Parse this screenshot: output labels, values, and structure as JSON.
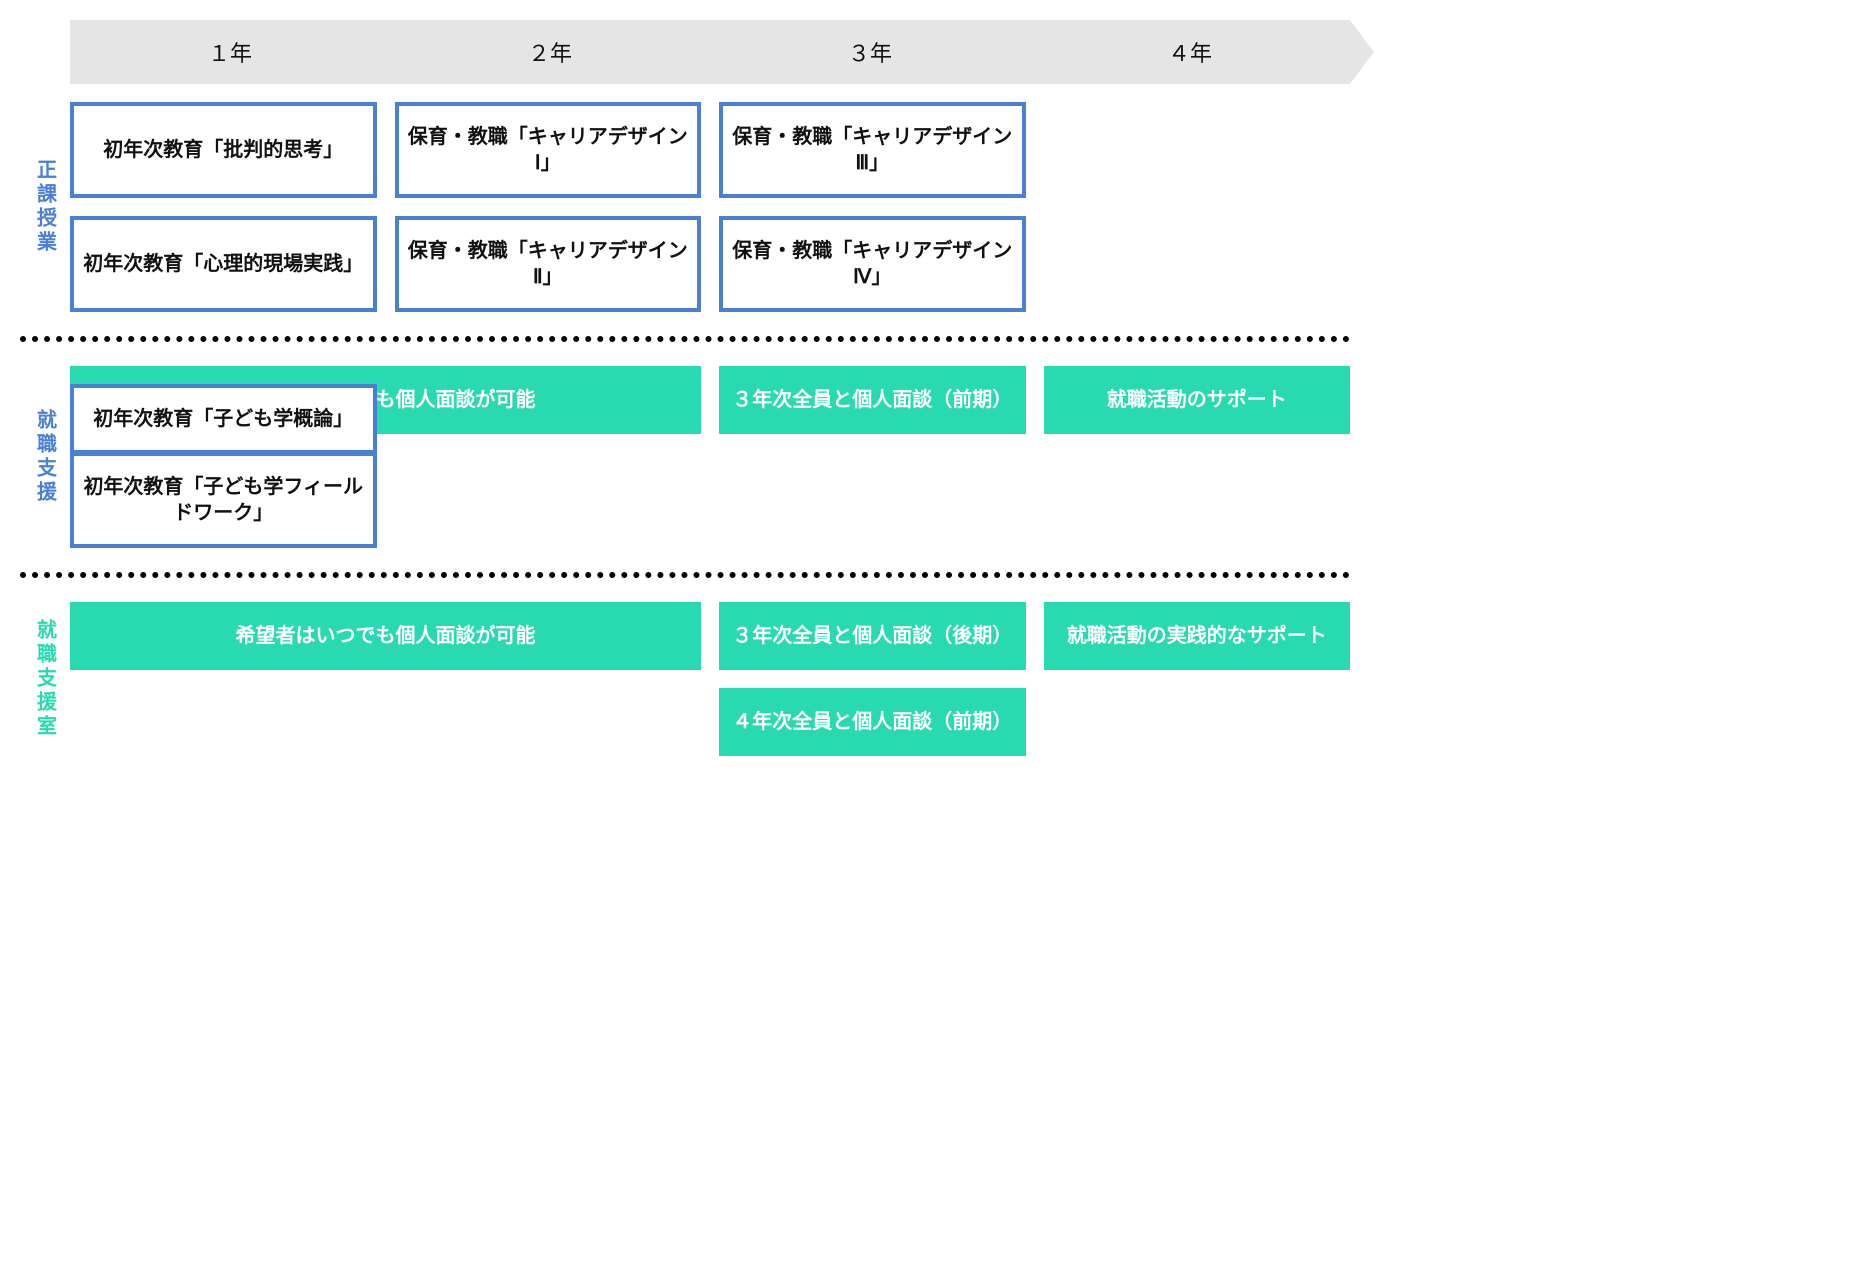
{
  "years": [
    "１年",
    "２年",
    "３年",
    "４年"
  ],
  "sections": {
    "curriculum": {
      "label": "正課授業",
      "label_color": "#4a7fd6",
      "boxes": [
        {
          "text": "初年次教育「批判的思考」",
          "col": 1,
          "row": 1,
          "border": "#4a7fd6"
        },
        {
          "text": "保育・教職「キャリアデザインⅠ」",
          "col": 2,
          "row": 1,
          "border": "#4a7fd6"
        },
        {
          "text": "保育・教職「キャリアデザインⅢ」",
          "col": 3,
          "row": 1,
          "border": "#4a7fd6"
        },
        {
          "text": "初年次教育「心理的現場実践」",
          "col": 1,
          "row": 2,
          "border": "#4a7fd6"
        },
        {
          "text": "保育・教職「キャリアデザインⅡ」",
          "col": 2,
          "row": 2,
          "border": "#4a7fd6"
        },
        {
          "text": "保育・教職「キャリアデザインⅣ」",
          "col": 3,
          "row": 2,
          "border": "#4a7fd6"
        }
      ]
    },
    "dept_support": {
      "label": "就職支援",
      "label_color": "#4a7fd6",
      "boxes_outline": [
        {
          "text": "初年次教育「子ども学概論」",
          "col": 1,
          "row": 1,
          "border": "#4a7fd6"
        },
        {
          "text": "初年次教育「子ども学フィールドワーク」",
          "col": 1,
          "row": 2,
          "border": "#4a7fd6"
        }
      ],
      "boxes_fill": [
        {
          "text": "希望者はいつでも個人面談が可能",
          "col_span": "1-3",
          "row": 1
        },
        {
          "text": "３年次全員と個人面談（前期）",
          "col": 3,
          "row": 1
        },
        {
          "text": "就職活動のサポート",
          "col": 4,
          "row": 1
        }
      ]
    },
    "office_support": {
      "label": "就職支援室",
      "label_color": "#29d9b0",
      "boxes_fill": [
        {
          "text": "希望者はいつでも個人面談が可能",
          "col_span": "1-2",
          "row": 1
        },
        {
          "text": "３年次全員と個人面談（後期）",
          "col": 3,
          "row": 1
        },
        {
          "text": "就職活動の実践的なサポート",
          "col": 4,
          "row": 1
        },
        {
          "text": "４年次全員と個人面談（前期）",
          "col": 3,
          "row": 2
        }
      ]
    }
  },
  "colors": {
    "year_bg": "#e5e5e5",
    "blue": "#4a7fd6",
    "teal": "#29d9b0",
    "text": "#111111",
    "fill_text": "#ffffff"
  }
}
